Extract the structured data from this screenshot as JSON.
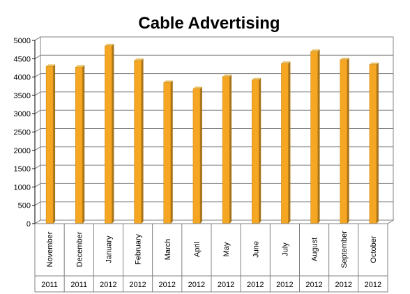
{
  "chart_data": {
    "type": "bar",
    "title": "Cable Advertising",
    "categories": [
      "November",
      "December",
      "January",
      "February",
      "March",
      "April",
      "May",
      "June",
      "July",
      "August",
      "September",
      "October"
    ],
    "years": [
      "2011",
      "2011",
      "2012",
      "2012",
      "2012",
      "2012",
      "2012",
      "2012",
      "2012",
      "2012",
      "2012",
      "2012"
    ],
    "values": [
      4290,
      4270,
      4850,
      4450,
      3850,
      3680,
      4010,
      3920,
      4370,
      4700,
      4470,
      4340
    ],
    "ylim": [
      0,
      5000
    ],
    "yticks": [
      0,
      500,
      1000,
      1500,
      2000,
      2500,
      3000,
      3500,
      4000,
      4500,
      5000
    ],
    "grid": true,
    "legend": "none",
    "colors": {
      "bar_front": "#F5A623",
      "bar_side": "#A8741A",
      "bar_top": "#E8C36A",
      "grid": "#808080",
      "wall": "#FFFFFF"
    }
  }
}
